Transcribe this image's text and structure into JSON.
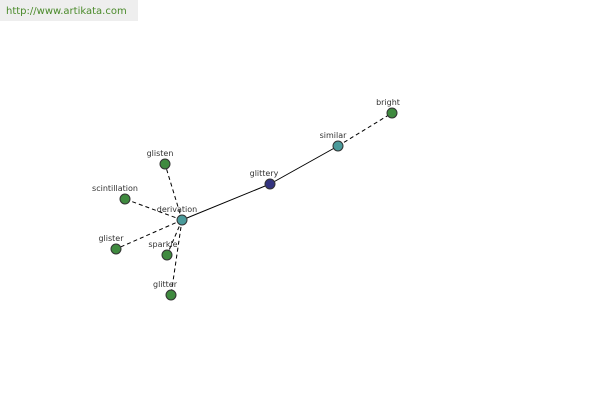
{
  "header": {
    "url": "http://www.artikata.com"
  },
  "nodes": [
    {
      "label": "glittery"
    },
    {
      "label": "similar"
    },
    {
      "label": "bright"
    },
    {
      "label": "derivation"
    },
    {
      "label": "glisten"
    },
    {
      "label": "scintillation"
    },
    {
      "label": "glister"
    },
    {
      "label": "sparkle"
    },
    {
      "label": "glitter"
    }
  ]
}
